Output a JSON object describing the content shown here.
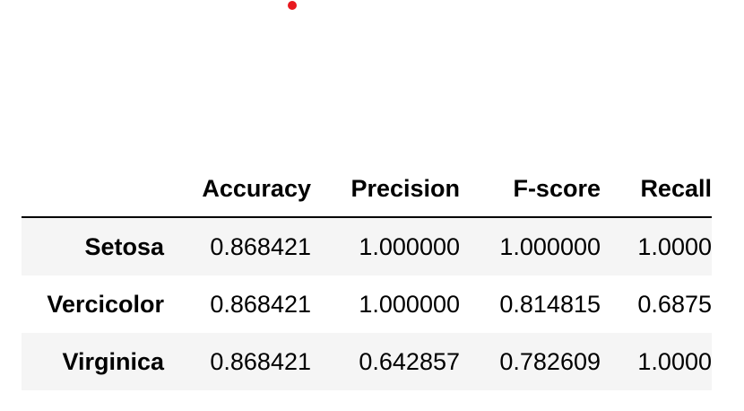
{
  "table": {
    "columns": [
      "Accuracy",
      "Precision",
      "F-score",
      "Recall"
    ],
    "rows": [
      {
        "label": "Setosa",
        "values": [
          "0.868421",
          "1.000000",
          "1.000000",
          "1.0000"
        ]
      },
      {
        "label": "Vercicolor",
        "values": [
          "0.868421",
          "1.000000",
          "0.814815",
          "0.6875"
        ]
      },
      {
        "label": "Virginica",
        "values": [
          "0.868421",
          "0.642857",
          "0.782609",
          "1.0000"
        ]
      }
    ]
  },
  "colors": {
    "dot": "#e8191f",
    "stripe": "#f5f5f5",
    "header_rule": "#000000"
  }
}
